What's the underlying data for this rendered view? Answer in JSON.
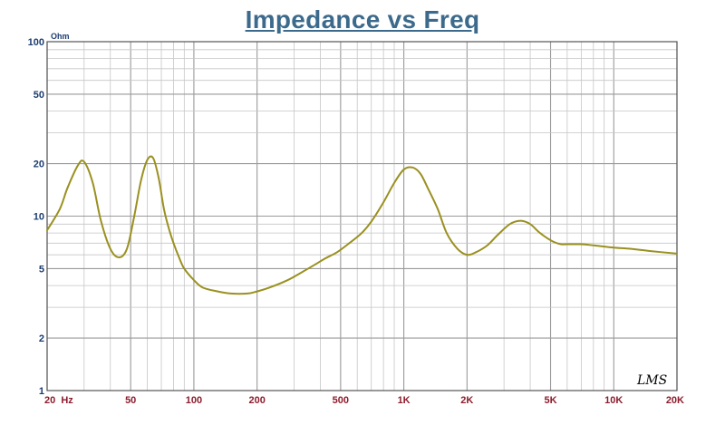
{
  "chart_data": {
    "type": "line",
    "title": "Impedance vs Freq",
    "ylabel": "Ohm",
    "xlabel": "",
    "x_scale": "log",
    "y_scale": "log",
    "xlim": [
      20,
      20000
    ],
    "ylim": [
      1,
      100
    ],
    "x_tick_labels": [
      {
        "value": 20,
        "label": "20  Hz"
      },
      {
        "value": 50,
        "label": "50"
      },
      {
        "value": 100,
        "label": "100"
      },
      {
        "value": 200,
        "label": "200"
      },
      {
        "value": 500,
        "label": "500"
      },
      {
        "value": 1000,
        "label": "1K"
      },
      {
        "value": 2000,
        "label": "2K"
      },
      {
        "value": 5000,
        "label": "5K"
      },
      {
        "value": 10000,
        "label": "10K"
      },
      {
        "value": 20000,
        "label": "20K"
      }
    ],
    "y_tick_labels": [
      {
        "value": 1,
        "label": "1"
      },
      {
        "value": 2,
        "label": "2"
      },
      {
        "value": 5,
        "label": "5"
      },
      {
        "value": 10,
        "label": "10"
      },
      {
        "value": 20,
        "label": "20"
      },
      {
        "value": 50,
        "label": "50"
      },
      {
        "value": 100,
        "label": "100"
      }
    ],
    "grid": true,
    "series": [
      {
        "color": "#9a9020",
        "x": [
          20,
          23,
          25,
          28,
          30,
          33,
          36,
          40,
          44,
          48,
          52,
          56,
          60,
          64,
          68,
          72,
          76,
          80,
          85,
          90,
          100,
          110,
          130,
          150,
          180,
          200,
          230,
          280,
          330,
          380,
          420,
          480,
          550,
          630,
          700,
          800,
          900,
          1000,
          1100,
          1200,
          1300,
          1450,
          1600,
          1800,
          2000,
          2200,
          2500,
          2800,
          3200,
          3600,
          4000,
          4400,
          4800,
          5200,
          5600,
          6000,
          7000,
          8000,
          10000,
          12000,
          15000,
          20000
        ],
        "values": [
          8.3,
          11,
          14.5,
          19.5,
          20.5,
          15.5,
          9.5,
          6.5,
          5.8,
          6.5,
          10,
          16,
          21,
          21.5,
          16.5,
          11,
          8.5,
          7,
          5.8,
          5,
          4.3,
          3.9,
          3.7,
          3.6,
          3.6,
          3.7,
          3.9,
          4.3,
          4.8,
          5.3,
          5.7,
          6.2,
          7,
          8,
          9.3,
          12,
          15.5,
          18.5,
          19,
          17.5,
          14.5,
          11,
          8,
          6.5,
          6,
          6.2,
          6.8,
          7.8,
          9,
          9.4,
          9,
          8.1,
          7.5,
          7.1,
          6.9,
          6.9,
          6.9,
          6.8,
          6.6,
          6.5,
          6.3,
          6.1
        ]
      }
    ]
  },
  "watermark": "LMS"
}
